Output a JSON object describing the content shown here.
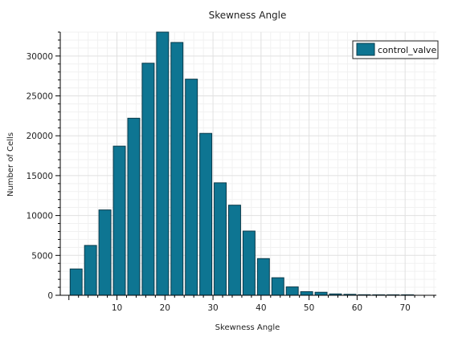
{
  "chart_data": {
    "type": "bar",
    "title": "Skewness Angle",
    "xlabel": "Skewness Angle",
    "ylabel": "Number of Cells",
    "xlim": [
      -1.8,
      76.5
    ],
    "ylim": [
      0,
      33000
    ],
    "x_ticks": [
      10,
      20,
      30,
      40,
      50,
      60,
      70
    ],
    "y_ticks": [
      0,
      5000,
      10000,
      15000,
      20000,
      25000,
      30000
    ],
    "grid": true,
    "legend_position": "top-right",
    "series": [
      {
        "name": "control_valve",
        "color": "#0e7592",
        "bin_width": 3,
        "x": [
          1.5,
          4.5,
          7.5,
          10.5,
          13.5,
          16.5,
          19.5,
          22.5,
          25.5,
          28.5,
          31.5,
          34.5,
          37.5,
          40.5,
          43.5,
          46.5,
          49.5,
          52.5,
          55.5,
          58.5,
          61.5,
          64.5,
          67.5,
          70.5
        ],
        "values": [
          3300,
          6250,
          10700,
          18700,
          22200,
          29100,
          33200,
          31700,
          27100,
          20300,
          14100,
          11300,
          8050,
          4600,
          2200,
          1050,
          450,
          380,
          170,
          120,
          70,
          40,
          25,
          15
        ]
      }
    ]
  }
}
